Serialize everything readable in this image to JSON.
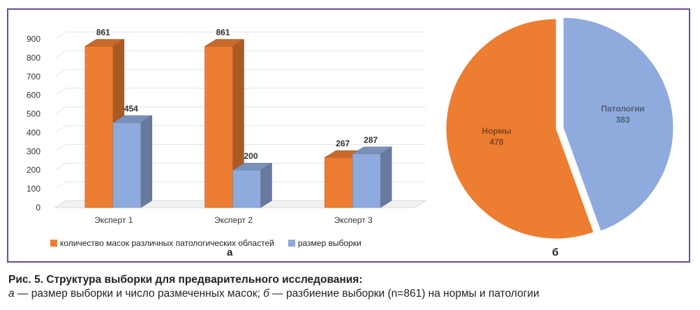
{
  "chart_data": [
    {
      "type": "bar",
      "panel_letter": "а",
      "categories": [
        "Эксперт 1",
        "Эксперт 2",
        "Эксперт 3"
      ],
      "ylim": [
        0,
        900
      ],
      "yticks": [
        0,
        100,
        200,
        300,
        400,
        500,
        600,
        700,
        800,
        900
      ],
      "series": [
        {
          "name": "количество масок различных патологических областей",
          "values": [
            861,
            861,
            267
          ],
          "color": "#ed7d31"
        },
        {
          "name": "размер выборки",
          "values": [
            454,
            200,
            287
          ],
          "color": "#8faadc"
        }
      ],
      "legend_position": "bottom",
      "grid": true
    },
    {
      "type": "pie",
      "panel_letter": "б",
      "slices": [
        {
          "label": "Нормы",
          "value": 478,
          "color": "#ed7d31"
        },
        {
          "label": "Патологии",
          "value": 383,
          "color": "#8faadc"
        }
      ]
    }
  ],
  "caption": {
    "title": "Рис. 5. Структура выборки для предварительного исследования:",
    "a_letter": "а",
    "a_text": " — размер выборки и число размеченных масок; ",
    "b_letter": "б",
    "b_text": " — разбиение выборки (n=861) на нормы и патологии"
  }
}
